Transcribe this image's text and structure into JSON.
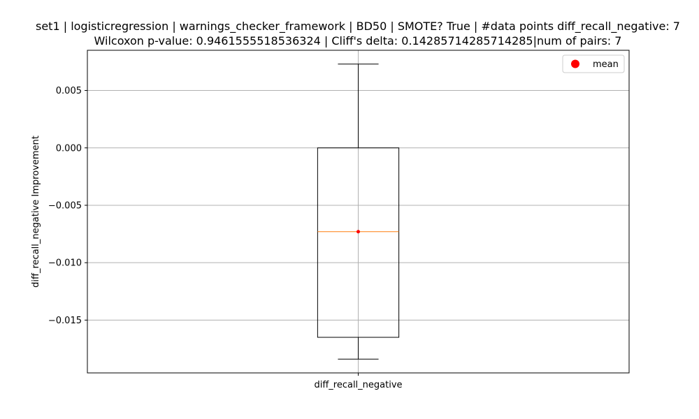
{
  "chart_data": {
    "type": "box",
    "title_lines": [
      "set1 | logisticregression | warnings_checker_framework | BD50 | SMOTE? True | #data points diff_recall_negative: 7",
      "Wilcoxon p-value: 0.9461555518536324 | Cliff's delta: 0.14285714285714285|num of pairs: 7"
    ],
    "ylabel": "diff_recall_negative Improvement",
    "categories": [
      "diff_recall_negative"
    ],
    "ylim": [
      -0.0196,
      0.0085
    ],
    "yticks": [
      0.005,
      0.0,
      -0.005,
      -0.01,
      -0.015
    ],
    "ytick_labels": [
      "0.005",
      "0.000",
      "−0.005",
      "−0.010",
      "−0.015"
    ],
    "grid": true,
    "legend": {
      "placement": "top-right",
      "entries": [
        {
          "label": "mean",
          "color": "#ff0000",
          "marker": "circle"
        }
      ]
    },
    "boxes": [
      {
        "category": "diff_recall_negative",
        "whisker_low": -0.0184,
        "q1": -0.0165,
        "median": -0.0073,
        "q3": 0.0,
        "whisker_high": 0.0073,
        "mean": -0.0073
      }
    ],
    "colors": {
      "box": "#000000",
      "median": "#ff7f0e",
      "mean": "#ff0000",
      "grid": "#b0b0b0"
    }
  }
}
